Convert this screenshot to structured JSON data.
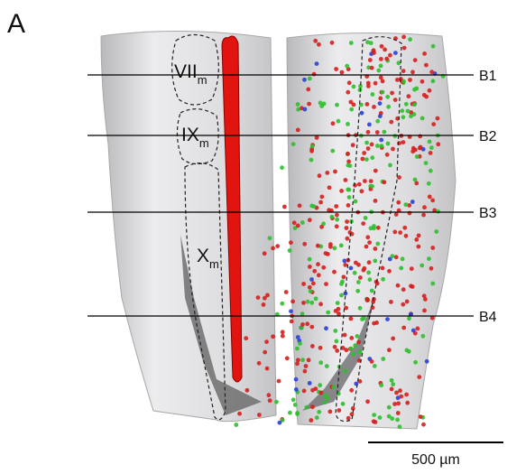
{
  "panel_label": "A",
  "regions": [
    {
      "label": "VII",
      "subscript": "m"
    },
    {
      "label": "IX",
      "subscript": "m"
    },
    {
      "label": "X",
      "subscript": "m"
    }
  ],
  "section_lines": [
    "B1",
    "B2",
    "B3",
    "B4"
  ],
  "scale_bar": {
    "label": "500 µm"
  }
}
